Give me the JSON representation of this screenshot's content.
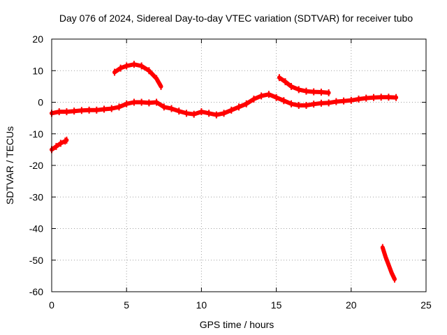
{
  "chart_data": {
    "type": "line",
    "title": "Day 076 of 2024, Sidereal Day-to-day VTEC variation (SDTVAR) for receiver tubo",
    "xlabel": "GPS time / hours",
    "ylabel": "SDTVAR / TECUs",
    "xlim": [
      0,
      25
    ],
    "ylim": [
      -60,
      20
    ],
    "xticks": [
      0,
      5,
      10,
      15,
      20,
      25
    ],
    "yticks": [
      20,
      10,
      0,
      -10,
      -20,
      -30,
      -40,
      -50,
      -60
    ],
    "grid": true,
    "colors": {
      "series": "#ff0000",
      "axes": "#000000",
      "grid": "#a0a0a0"
    },
    "series": [
      {
        "name": "main-trace",
        "x": [
          0.0,
          0.5,
          1.0,
          1.5,
          2.0,
          2.5,
          3.0,
          3.5,
          4.0,
          4.5,
          5.0,
          5.5,
          6.0,
          6.5,
          7.0,
          7.5,
          8.0,
          8.5,
          9.0,
          9.5,
          10.0,
          10.5,
          11.0,
          11.5,
          12.0,
          12.5,
          13.0,
          13.5,
          14.0,
          14.5,
          15.0,
          15.5,
          16.0,
          16.5,
          17.0,
          17.5,
          18.0,
          18.5,
          19.0,
          19.5,
          20.0,
          20.5,
          21.0,
          21.5,
          22.0,
          22.5,
          23.0
        ],
        "y": [
          -3.5,
          -3.0,
          -3.0,
          -2.8,
          -2.6,
          -2.5,
          -2.5,
          -2.2,
          -2.0,
          -1.5,
          -0.5,
          0.0,
          0.0,
          -0.2,
          0.0,
          -1.5,
          -2.0,
          -2.8,
          -3.5,
          -3.8,
          -3.0,
          -3.5,
          -4.0,
          -3.5,
          -2.5,
          -1.5,
          -0.5,
          1.0,
          2.0,
          2.5,
          1.5,
          0.5,
          -0.5,
          -1.0,
          -1.0,
          -0.6,
          -0.3,
          -0.2,
          0.2,
          0.4,
          0.6,
          1.0,
          1.3,
          1.5,
          1.6,
          1.6,
          1.5
        ]
      },
      {
        "name": "early-dip",
        "x": [
          0.0,
          0.3,
          0.6,
          0.9,
          1.0
        ],
        "y": [
          -15.0,
          -14.0,
          -13.0,
          -12.3,
          -12.0
        ]
      },
      {
        "name": "morning-arc",
        "x": [
          4.2,
          4.6,
          5.0,
          5.5,
          6.0,
          6.5,
          7.0,
          7.3
        ],
        "y": [
          9.5,
          10.8,
          11.5,
          12.0,
          11.5,
          10.0,
          7.5,
          5.0
        ]
      },
      {
        "name": "afternoon-decay",
        "x": [
          15.2,
          15.6,
          16.0,
          16.5,
          17.0,
          17.5,
          18.0,
          18.5
        ],
        "y": [
          7.8,
          6.5,
          5.0,
          4.0,
          3.5,
          3.3,
          3.2,
          3.0
        ]
      },
      {
        "name": "late-drop",
        "x": [
          22.1,
          22.3,
          22.5,
          22.7,
          22.9
        ],
        "y": [
          -46.0,
          -49.0,
          -51.5,
          -54.0,
          -56.0
        ]
      }
    ]
  }
}
